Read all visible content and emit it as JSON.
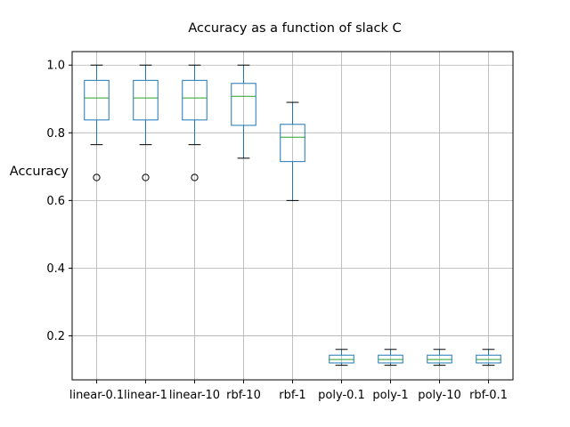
{
  "chart_data": {
    "type": "boxplot",
    "title": "Accuracy as a function of slack C",
    "xlabel": "",
    "ylabel": "Accuracy",
    "ylim": [
      0.07,
      1.04
    ],
    "yticks": [
      0.2,
      0.4,
      0.6,
      0.8,
      1.0
    ],
    "ytick_labels": [
      "0.2",
      "0.4",
      "0.6",
      "0.8",
      "1.0"
    ],
    "grid": true,
    "categories": [
      "linear-0.1",
      "linear-1",
      "linear-10",
      "rbf-10",
      "rbf-1",
      "poly-0.1",
      "poly-1",
      "poly-10",
      "rbf-0.1"
    ],
    "boxes": [
      {
        "whisker_low": 0.765,
        "q1": 0.838,
        "median": 0.903,
        "q3": 0.955,
        "whisker_high": 1.0,
        "outliers": [
          0.668
        ]
      },
      {
        "whisker_low": 0.765,
        "q1": 0.838,
        "median": 0.903,
        "q3": 0.955,
        "whisker_high": 1.0,
        "outliers": [
          0.668
        ]
      },
      {
        "whisker_low": 0.765,
        "q1": 0.838,
        "median": 0.903,
        "q3": 0.955,
        "whisker_high": 1.0,
        "outliers": [
          0.668
        ]
      },
      {
        "whisker_low": 0.725,
        "q1": 0.822,
        "median": 0.908,
        "q3": 0.946,
        "whisker_high": 1.0,
        "outliers": []
      },
      {
        "whisker_low": 0.6,
        "q1": 0.715,
        "median": 0.787,
        "q3": 0.825,
        "whisker_high": 0.89,
        "outliers": []
      },
      {
        "whisker_low": 0.113,
        "q1": 0.12,
        "median": 0.13,
        "q3": 0.143,
        "whisker_high": 0.16,
        "outliers": []
      },
      {
        "whisker_low": 0.113,
        "q1": 0.12,
        "median": 0.13,
        "q3": 0.143,
        "whisker_high": 0.16,
        "outliers": []
      },
      {
        "whisker_low": 0.113,
        "q1": 0.12,
        "median": 0.13,
        "q3": 0.143,
        "whisker_high": 0.16,
        "outliers": []
      },
      {
        "whisker_low": 0.113,
        "q1": 0.12,
        "median": 0.13,
        "q3": 0.143,
        "whisker_high": 0.16,
        "outliers": []
      }
    ],
    "colors": {
      "box": "#1f77b4",
      "median": "#2ca02c",
      "whisker": "#000000",
      "grid": "#b0b0b0",
      "axes": "#000000"
    }
  }
}
